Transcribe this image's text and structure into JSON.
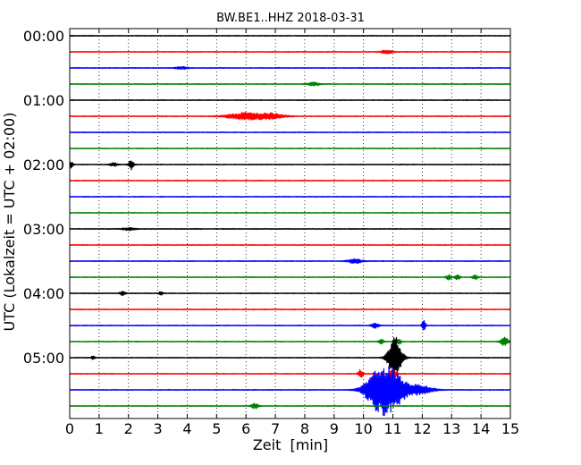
{
  "chart_data": {
    "type": "line",
    "title": "BW.BE1..HHZ 2018-03-31",
    "xlabel": "Zeit  [min]",
    "ylabel": "UTC (Lokalzeit = UTC + 02:00)",
    "xlim": [
      0,
      15
    ],
    "x_ticks": [
      "0",
      "1",
      "2",
      "3",
      "4",
      "5",
      "6",
      "7",
      "8",
      "9",
      "10",
      "11",
      "12",
      "13",
      "14",
      "15"
    ],
    "y_tick_labels": [
      "00:00",
      "01:00",
      "02:00",
      "03:00",
      "04:00",
      "05:00"
    ],
    "grid": "vertical dotted",
    "trace_colors": [
      "#000000",
      "#ff0000",
      "#0000ff",
      "#008000"
    ],
    "trace_interval_min": 15,
    "traces": [
      {
        "start": "00:00",
        "color": "#000000",
        "events": []
      },
      {
        "start": "00:15",
        "color": "#ff0000",
        "events": [
          {
            "t": 10.8,
            "amp": 0.2,
            "dur": 0.5
          }
        ]
      },
      {
        "start": "00:30",
        "color": "#0000ff",
        "events": [
          {
            "t": 3.8,
            "amp": 0.15,
            "dur": 0.5
          }
        ]
      },
      {
        "start": "00:45",
        "color": "#008000",
        "events": [
          {
            "t": 8.3,
            "amp": 0.2,
            "dur": 0.5
          }
        ]
      },
      {
        "start": "01:00",
        "color": "#000000",
        "events": []
      },
      {
        "start": "01:15",
        "color": "#ff0000",
        "events": [
          {
            "t": 5.9,
            "amp": 0.4,
            "dur": 1.3
          },
          {
            "t": 6.8,
            "amp": 0.35,
            "dur": 1.2
          }
        ]
      },
      {
        "start": "01:30",
        "color": "#0000ff",
        "events": []
      },
      {
        "start": "01:45",
        "color": "#008000",
        "events": []
      },
      {
        "start": "02:00",
        "color": "#000000",
        "events": [
          {
            "t": 0.05,
            "amp": 0.4,
            "dur": 0.15
          },
          {
            "t": 2.1,
            "amp": 0.6,
            "dur": 0.2
          },
          {
            "t": 1.5,
            "amp": 0.2,
            "dur": 0.3
          }
        ]
      },
      {
        "start": "02:15",
        "color": "#ff0000",
        "events": []
      },
      {
        "start": "02:30",
        "color": "#0000ff",
        "events": []
      },
      {
        "start": "02:45",
        "color": "#008000",
        "events": []
      },
      {
        "start": "03:00",
        "color": "#000000",
        "events": [
          {
            "t": 2.0,
            "amp": 0.15,
            "dur": 0.5
          }
        ]
      },
      {
        "start": "03:15",
        "color": "#ff0000",
        "events": []
      },
      {
        "start": "03:30",
        "color": "#0000ff",
        "events": [
          {
            "t": 9.7,
            "amp": 0.25,
            "dur": 0.6
          }
        ]
      },
      {
        "start": "03:45",
        "color": "#008000",
        "events": [
          {
            "t": 12.9,
            "amp": 0.3,
            "dur": 0.2
          },
          {
            "t": 13.2,
            "amp": 0.3,
            "dur": 0.2
          },
          {
            "t": 13.8,
            "amp": 0.3,
            "dur": 0.2
          }
        ]
      },
      {
        "start": "04:00",
        "color": "#000000",
        "events": [
          {
            "t": 1.8,
            "amp": 0.3,
            "dur": 0.2
          },
          {
            "t": 3.1,
            "amp": 0.2,
            "dur": 0.15
          }
        ]
      },
      {
        "start": "04:15",
        "color": "#ff0000",
        "events": []
      },
      {
        "start": "04:30",
        "color": "#0000ff",
        "events": [
          {
            "t": 10.4,
            "amp": 0.3,
            "dur": 0.3
          },
          {
            "t": 12.05,
            "amp": 0.6,
            "dur": 0.15
          }
        ]
      },
      {
        "start": "04:45",
        "color": "#008000",
        "events": [
          {
            "t": 10.6,
            "amp": 0.3,
            "dur": 0.2
          },
          {
            "t": 11.2,
            "amp": 0.35,
            "dur": 0.2
          },
          {
            "t": 14.8,
            "amp": 0.5,
            "dur": 0.3
          }
        ]
      },
      {
        "start": "05:00",
        "color": "#000000",
        "events": [
          {
            "t": 0.8,
            "amp": 0.2,
            "dur": 0.15
          },
          {
            "t": 11.1,
            "amp": 2.3,
            "dur": 0.5
          },
          {
            "t": 10.9,
            "amp": 0.6,
            "dur": 0.4
          }
        ]
      },
      {
        "start": "05:15",
        "color": "#ff0000",
        "events": [
          {
            "t": 9.9,
            "amp": 0.5,
            "dur": 0.2
          },
          {
            "t": 11.0,
            "amp": 0.5,
            "dur": 0.3
          }
        ]
      },
      {
        "start": "05:30",
        "color": "#0000ff",
        "events": [
          {
            "t": 10.8,
            "amp": 3.0,
            "dur": 1.3
          },
          {
            "t": 10.3,
            "amp": 0.7,
            "dur": 0.8
          },
          {
            "t": 11.9,
            "amp": 0.55,
            "dur": 1.1
          }
        ]
      },
      {
        "start": "05:45",
        "color": "#008000",
        "events": [
          {
            "t": 6.3,
            "amp": 0.3,
            "dur": 0.3
          }
        ]
      }
    ]
  }
}
